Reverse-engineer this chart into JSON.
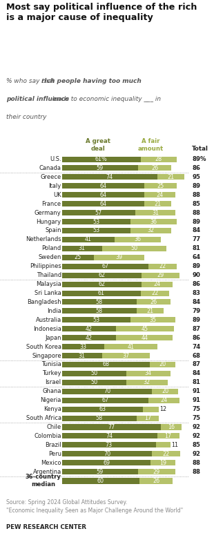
{
  "title": "Most say political influence of the rich\nis a major cause of inequality",
  "col_header_great": "A great\ndeal",
  "col_header_fair": "A fair\namount",
  "col_header_total": "Total",
  "countries": [
    "U.S.",
    "Canada",
    "Greece",
    "Italy",
    "UK",
    "France",
    "Germany",
    "Hungary",
    "Spain",
    "Netherlands",
    "Poland",
    "Sweden",
    "Philippines",
    "Thailand",
    "Malaysia",
    "Sri Lanka",
    "Bangladesh",
    "India",
    "Australia",
    "Indonesia",
    "Japan",
    "South Korea",
    "Singapore",
    "Tunisia",
    "Turkey",
    "Israel",
    "Ghana",
    "Nigeria",
    "Kenya",
    "South Africa",
    "Chile",
    "Colombia",
    "Brazil",
    "Peru",
    "Mexico",
    "Argentina",
    "36-country\nmedian"
  ],
  "great_deal": [
    61,
    59,
    74,
    64,
    64,
    64,
    57,
    53,
    53,
    41,
    31,
    25,
    67,
    62,
    62,
    61,
    58,
    58,
    53,
    42,
    42,
    33,
    31,
    68,
    50,
    50,
    70,
    67,
    63,
    58,
    77,
    74,
    73,
    70,
    69,
    59,
    60
  ],
  "fair_amount": [
    28,
    26,
    21,
    25,
    24,
    21,
    31,
    36,
    32,
    36,
    50,
    39,
    22,
    29,
    24,
    22,
    26,
    21,
    35,
    45,
    44,
    41,
    37,
    20,
    34,
    32,
    20,
    24,
    12,
    17,
    16,
    17,
    11,
    22,
    19,
    29,
    26
  ],
  "totals": [
    "89%",
    "86",
    "95",
    "89",
    "88",
    "85",
    "88",
    "89",
    "84",
    "77",
    "81",
    "64",
    "89",
    "90",
    "86",
    "83",
    "84",
    "79",
    "89",
    "87",
    "86",
    "74",
    "68",
    "87",
    "84",
    "81",
    "91",
    "91",
    "75",
    "75",
    "92",
    "92",
    "85",
    "92",
    "88",
    "88",
    ""
  ],
  "color_great": "#6b7a2e",
  "color_fair": "#b5c26a",
  "color_text_dark": "#222222",
  "color_header_great": "#6b7a2e",
  "color_header_fair": "#9aab42",
  "color_source": "#888888",
  "sep_after_indices": [
    1,
    13,
    22,
    25,
    29,
    35
  ],
  "bar_height": 0.62,
  "background_color": "#ffffff"
}
